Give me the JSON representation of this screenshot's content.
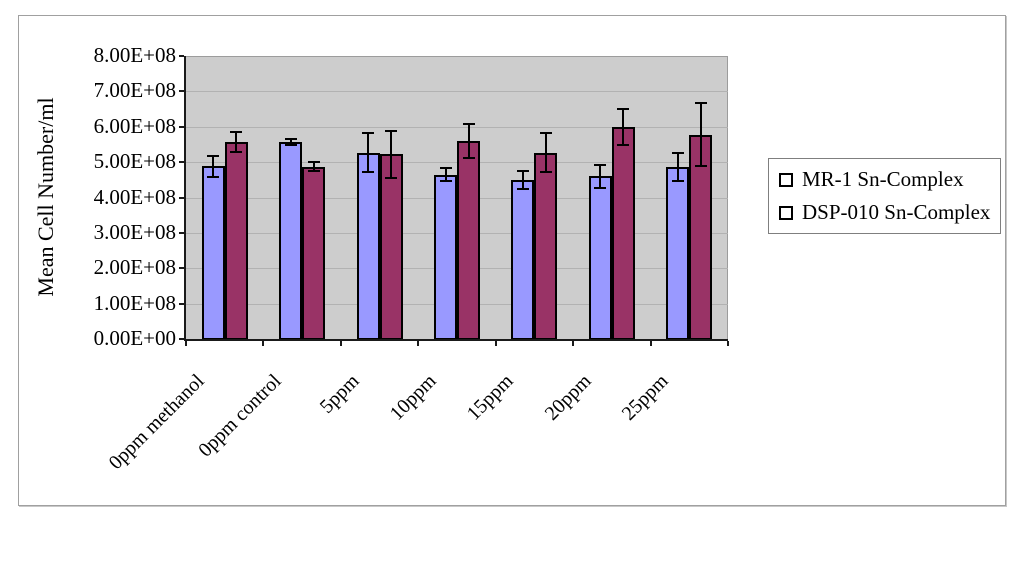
{
  "chart_data": {
    "type": "bar",
    "title": "",
    "ylabel": "Mean Cell Number/ml",
    "xlabel": "",
    "ylim": [
      0,
      800000000
    ],
    "ytick_step": 100000000,
    "ytick_labels": [
      "0.00E+00",
      "1.00E+08",
      "2.00E+08",
      "3.00E+08",
      "4.00E+08",
      "5.00E+08",
      "6.00E+08",
      "7.00E+08",
      "8.00E+08"
    ],
    "grid": true,
    "legend_position": "right",
    "plot_background": "#cdcdcd",
    "categories": [
      "0ppm methanol",
      "0ppm control",
      "5ppm",
      "10ppm",
      "15ppm",
      "20ppm",
      "25ppm"
    ],
    "series": [
      {
        "name": "MR-1 Sn-Complex",
        "color": "#9999ff",
        "values": [
          488000000,
          557000000,
          527000000,
          465000000,
          450000000,
          460000000,
          487000000
        ],
        "errors": [
          30000000,
          9000000,
          55000000,
          17000000,
          25000000,
          33000000,
          40000000
        ]
      },
      {
        "name": "DSP-010 Sn-Complex",
        "color": "#993366",
        "values": [
          557000000,
          487000000,
          522000000,
          560000000,
          527000000,
          600000000,
          578000000
        ],
        "errors": [
          27000000,
          12000000,
          66000000,
          47000000,
          56000000,
          51000000,
          90000000
        ]
      }
    ]
  }
}
